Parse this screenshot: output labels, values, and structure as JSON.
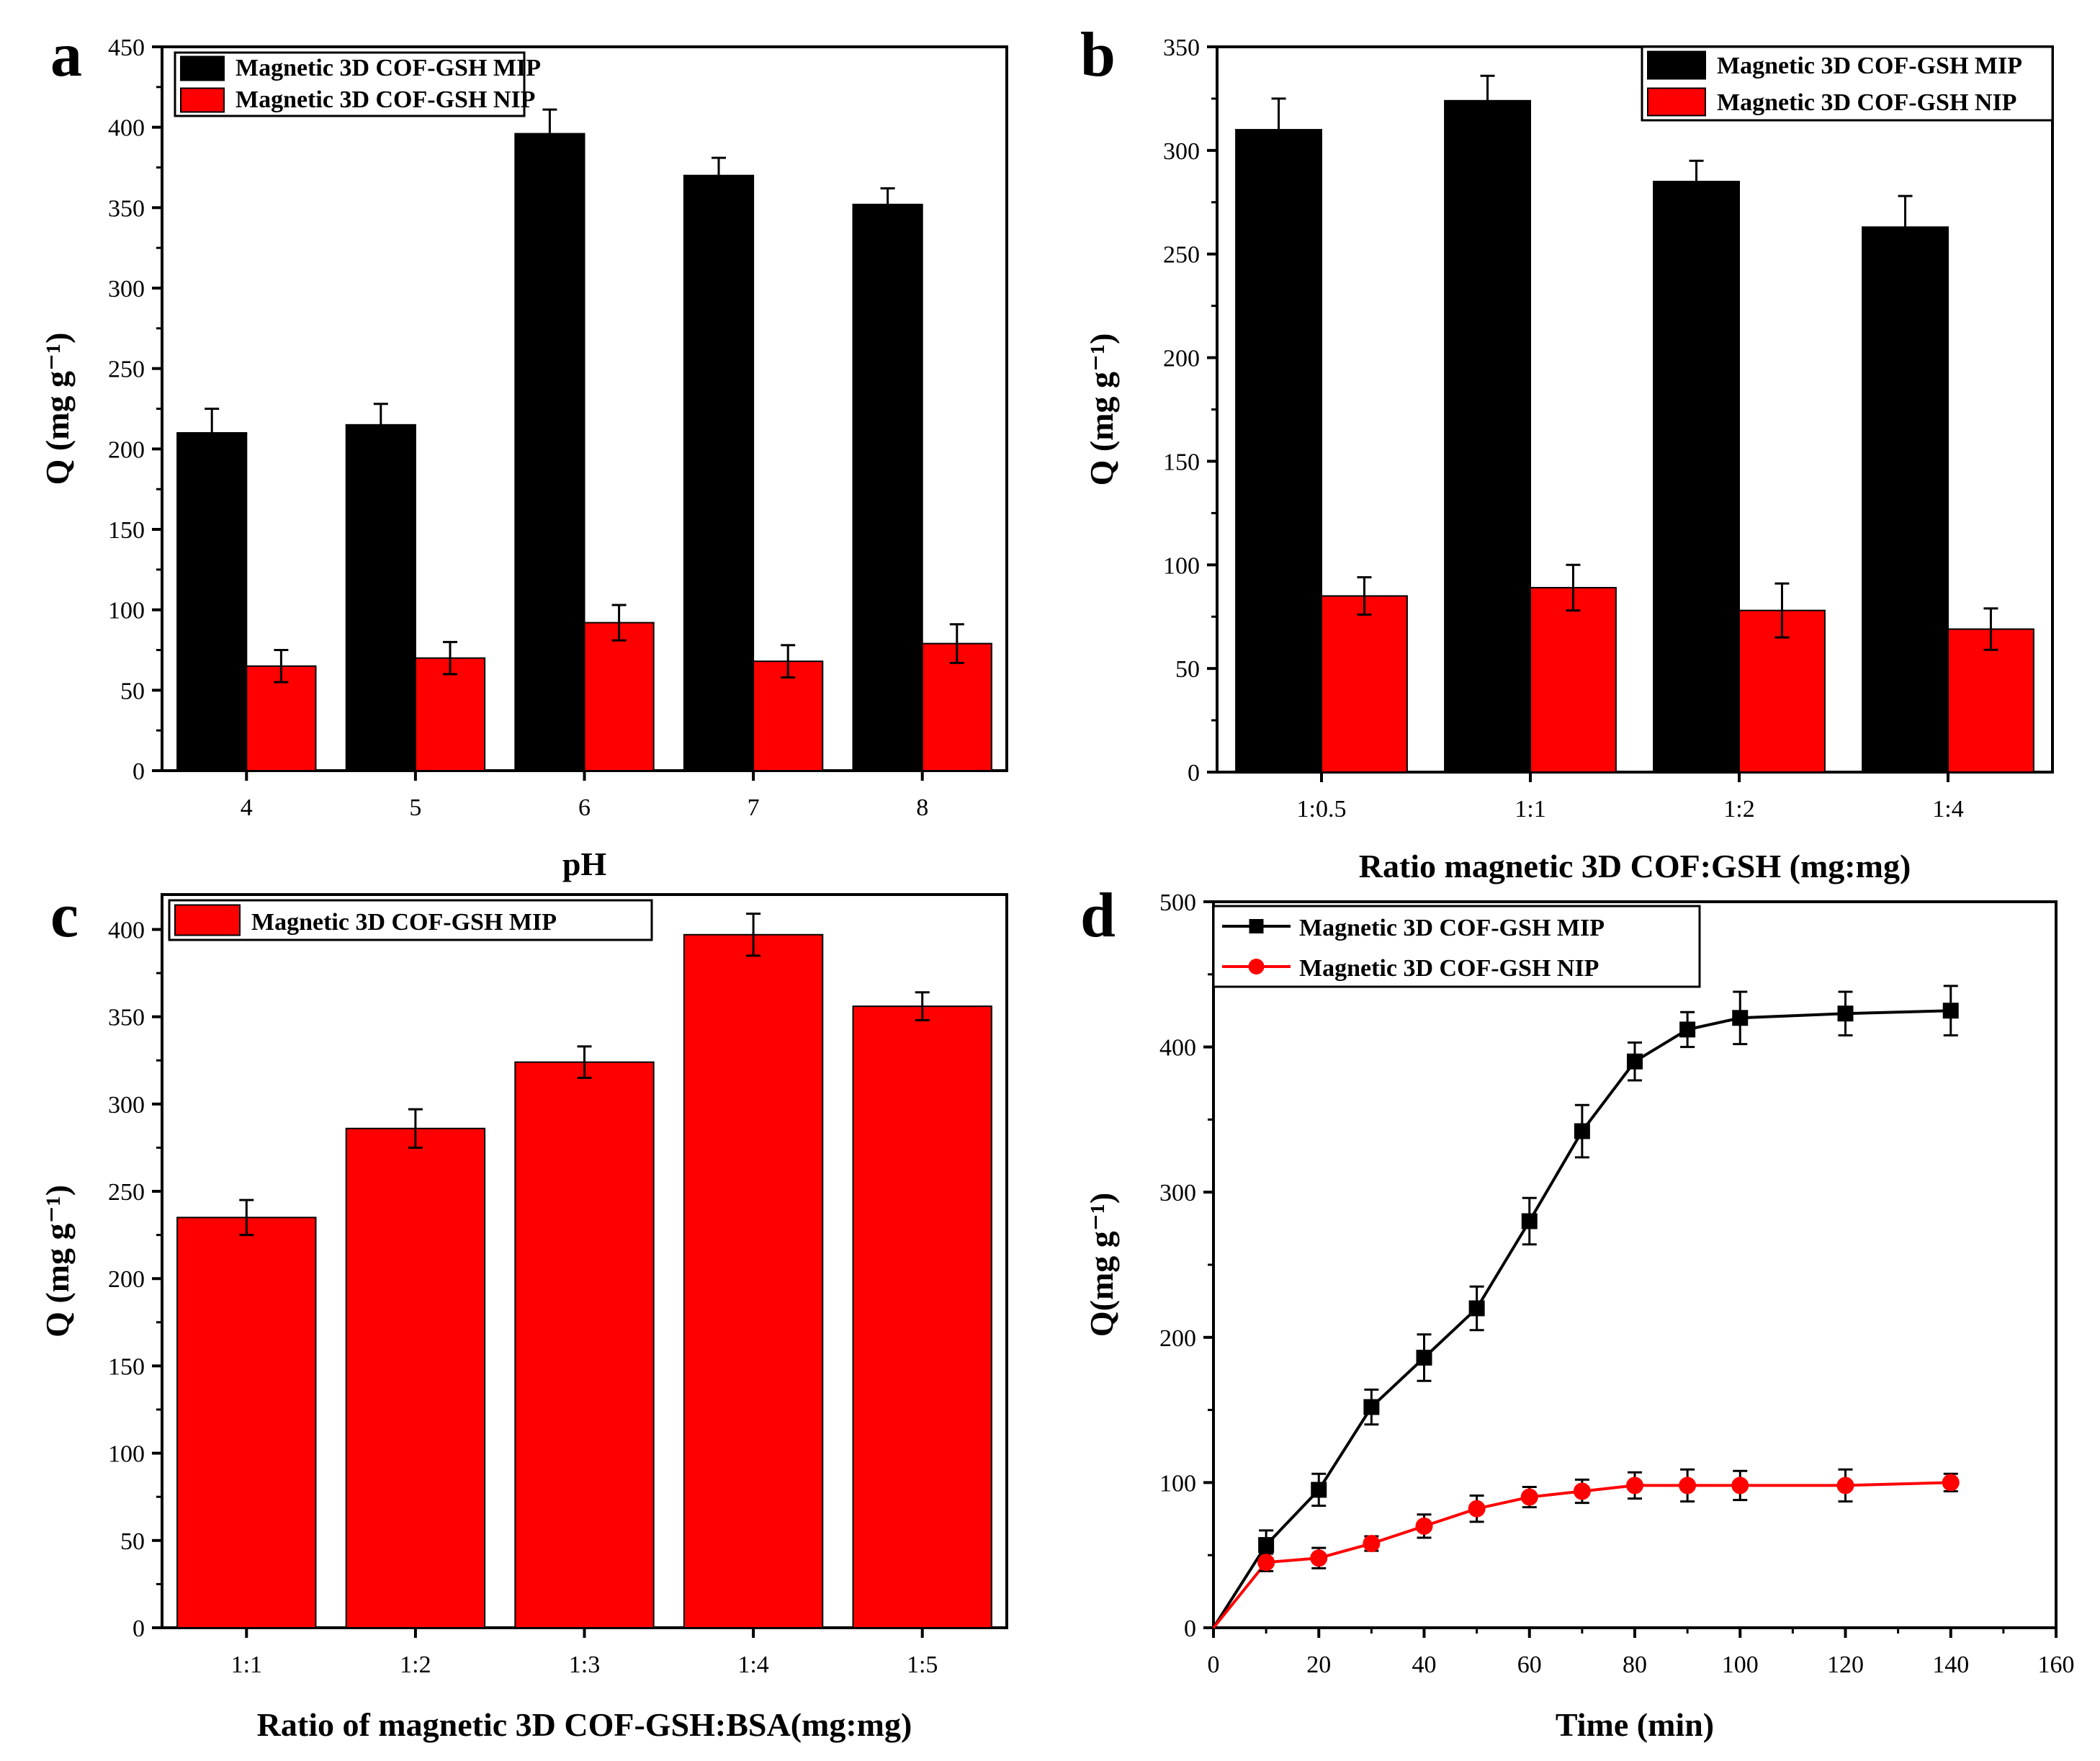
{
  "colors": {
    "mip": "#000000",
    "nip": "#ff0000",
    "axis": "#000000"
  },
  "chart_data": [
    {
      "id": "a",
      "panel_label": "a",
      "type": "bar",
      "title": "",
      "xlabel": "pH",
      "ylabel": "Q (mg g⁻¹)",
      "ylim": [
        0,
        450
      ],
      "yticks": [
        "0",
        "50",
        "100",
        "150",
        "200",
        "250",
        "300",
        "350",
        "400",
        "450"
      ],
      "categories": [
        "4",
        "5",
        "6",
        "7",
        "8"
      ],
      "legend_position": "top-left",
      "series": [
        {
          "name": "Magnetic 3D COF-GSH MIP",
          "color": "#000000",
          "values": [
            210,
            215,
            396,
            370,
            352
          ],
          "errors": [
            15,
            13,
            15,
            11,
            10
          ]
        },
        {
          "name": "Magnetic 3D COF-GSH NIP",
          "color": "#ff0000",
          "values": [
            65,
            70,
            92,
            68,
            79
          ],
          "errors": [
            10,
            10,
            11,
            10,
            12
          ]
        }
      ]
    },
    {
      "id": "b",
      "panel_label": "b",
      "type": "bar",
      "title": "",
      "xlabel": "Ratio magnetic 3D COF:GSH (mg:mg)",
      "ylabel": "Q (mg g⁻¹)",
      "ylim": [
        0,
        350
      ],
      "yticks": [
        "0",
        "50",
        "100",
        "150",
        "200",
        "250",
        "300",
        "350"
      ],
      "categories": [
        "1:0.5",
        "1:1",
        "1:2",
        "1:4"
      ],
      "legend_position": "top-right",
      "series": [
        {
          "name": "Magnetic 3D COF-GSH MIP",
          "color": "#000000",
          "values": [
            310,
            324,
            285,
            263
          ],
          "errors": [
            15,
            12,
            10,
            15
          ]
        },
        {
          "name": "Magnetic 3D COF-GSH NIP",
          "color": "#ff0000",
          "values": [
            85,
            89,
            78,
            69
          ],
          "errors": [
            9,
            11,
            13,
            10
          ]
        }
      ]
    },
    {
      "id": "c",
      "panel_label": "c",
      "type": "bar",
      "title": "",
      "xlabel": "Ratio of magnetic 3D COF-GSH:BSA(mg:mg)",
      "ylabel": "Q (mg g⁻¹)",
      "ylim": [
        0,
        420
      ],
      "yticks": [
        "0",
        "50",
        "100",
        "150",
        "200",
        "250",
        "300",
        "350",
        "400"
      ],
      "categories": [
        "1:1",
        "1:2",
        "1:3",
        "1:4",
        "1:5"
      ],
      "legend_position": "top-left",
      "series": [
        {
          "name": "Magnetic 3D COF-GSH MIP",
          "color": "#ff0000",
          "values": [
            235,
            286,
            324,
            397,
            356
          ],
          "errors": [
            10,
            11,
            9,
            12,
            8
          ]
        }
      ]
    },
    {
      "id": "d",
      "panel_label": "d",
      "type": "line",
      "title": "",
      "xlabel": "Time (min)",
      "ylabel": "Q(mg g⁻¹)",
      "xlim": [
        0,
        160
      ],
      "ylim": [
        0,
        500
      ],
      "xticks": [
        "0",
        "20",
        "40",
        "60",
        "80",
        "100",
        "120",
        "140",
        "160"
      ],
      "yticks": [
        "0",
        "100",
        "200",
        "300",
        "400",
        "500"
      ],
      "legend_position": "top-left",
      "series": [
        {
          "name": "Magnetic 3D COF-GSH MIP",
          "color": "#000000",
          "marker": "square",
          "x": [
            0,
            10,
            20,
            30,
            40,
            50,
            60,
            70,
            80,
            90,
            100,
            120,
            140
          ],
          "y": [
            0,
            57,
            95,
            152,
            186,
            220,
            280,
            342,
            390,
            412,
            420,
            423,
            425
          ],
          "errors": [
            0,
            10,
            11,
            12,
            16,
            15,
            16,
            18,
            13,
            12,
            18,
            15,
            17
          ]
        },
        {
          "name": "Magnetic 3D COF-GSH NIP",
          "color": "#ff0000",
          "marker": "circle",
          "x": [
            0,
            10,
            20,
            30,
            40,
            50,
            60,
            70,
            80,
            90,
            100,
            120,
            140
          ],
          "y": [
            0,
            45,
            48,
            58,
            70,
            82,
            90,
            94,
            98,
            98,
            98,
            98,
            100
          ],
          "errors": [
            0,
            6,
            7,
            5,
            8,
            9,
            7,
            8,
            9,
            11,
            10,
            11,
            6
          ]
        }
      ]
    }
  ]
}
